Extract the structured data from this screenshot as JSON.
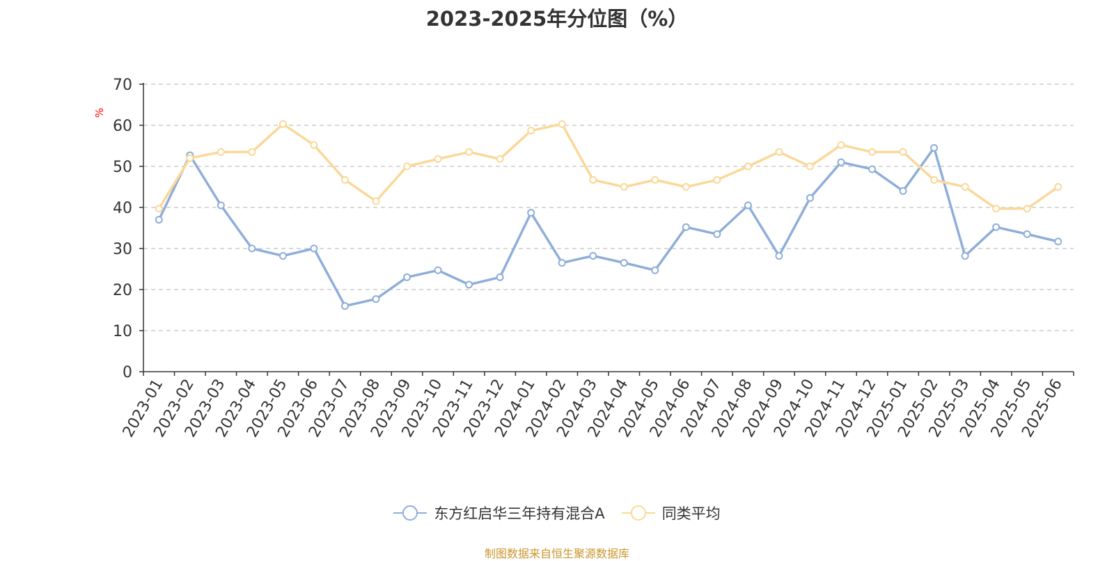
{
  "chart_data": {
    "type": "line",
    "title": "2023-2025年分位图（%）",
    "ylabel": "%",
    "xlabel": "",
    "ylim": [
      0,
      70
    ],
    "yticks": [
      0,
      10,
      20,
      30,
      40,
      50,
      60,
      70
    ],
    "grid": true,
    "legend_position": "bottom-center",
    "categories": [
      "2023-01",
      "2023-02",
      "2023-03",
      "2023-04",
      "2023-05",
      "2023-06",
      "2023-07",
      "2023-08",
      "2023-09",
      "2023-10",
      "2023-11",
      "2023-12",
      "2024-01",
      "2024-02",
      "2024-03",
      "2024-04",
      "2024-05",
      "2024-06",
      "2024-07",
      "2024-08",
      "2024-09",
      "2024-10",
      "2024-11",
      "2024-12",
      "2025-01",
      "2025-02",
      "2025-03",
      "2025-04",
      "2025-05",
      "2025-06"
    ],
    "series": [
      {
        "name": "东方红启华三年持有混合A",
        "color": "#8eaed9",
        "values": [
          37.0,
          52.7,
          40.5,
          30.0,
          28.2,
          30.0,
          16.0,
          17.7,
          23.0,
          24.7,
          21.2,
          23.0,
          38.7,
          26.5,
          28.2,
          26.5,
          24.7,
          35.2,
          33.5,
          40.5,
          28.2,
          42.3,
          51.0,
          49.3,
          44.0,
          54.5,
          28.2,
          35.2,
          33.5,
          31.7
        ]
      },
      {
        "name": "同类平均",
        "color": "#fad898",
        "values": [
          39.7,
          52.0,
          53.5,
          53.5,
          60.3,
          55.2,
          46.7,
          41.5,
          50.0,
          51.8,
          53.5,
          51.8,
          58.7,
          60.3,
          46.7,
          45.0,
          46.7,
          45.0,
          46.7,
          50.0,
          53.5,
          50.0,
          55.2,
          53.5,
          53.5,
          46.7,
          45.0,
          39.7,
          39.7,
          45.0
        ]
      }
    ]
  },
  "source_note": "制图数据来自恒生聚源数据库"
}
